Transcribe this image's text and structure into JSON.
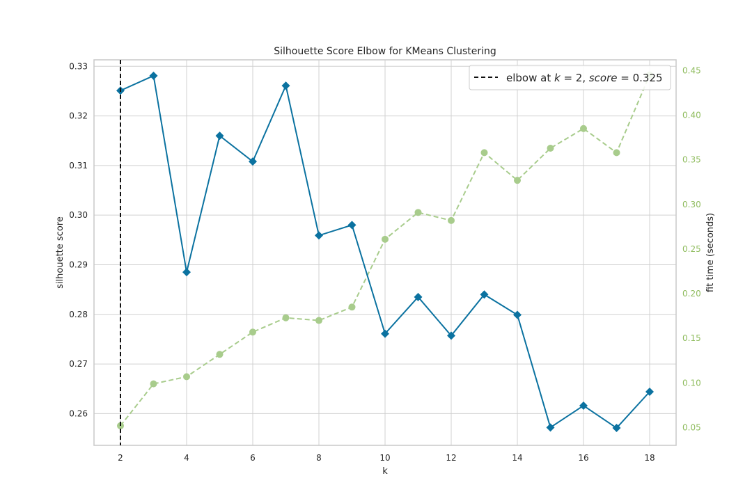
{
  "colors": {
    "score": "#0b72a0",
    "fit_time": "#a8cc8c",
    "fit_time_text": "#8fbc5e",
    "elbow": "#111111",
    "grid": "#d0d0d0",
    "spine": "#c8c8c8"
  },
  "chart_data": {
    "type": "line",
    "title": "Silhouette Score Elbow for KMeans Clustering",
    "xlabel": "k",
    "ylabel": "silhouette score",
    "y2label": "fit time (seconds)",
    "xlim": [
      1.2,
      18.8
    ],
    "ylim": [
      0.2536,
      0.3313
    ],
    "y2lim": [
      0.0301,
      0.462
    ],
    "x_ticks": [
      2,
      4,
      6,
      8,
      10,
      12,
      14,
      16,
      18
    ],
    "y_ticks": [
      0.26,
      0.27,
      0.28,
      0.29,
      0.3,
      0.31,
      0.32,
      0.33
    ],
    "y2_ticks": [
      0.05,
      0.1,
      0.15,
      0.2,
      0.25,
      0.3,
      0.35,
      0.4,
      0.45
    ],
    "grid": true,
    "x": [
      2,
      3,
      4,
      5,
      6,
      7,
      8,
      9,
      10,
      11,
      12,
      13,
      14,
      15,
      16,
      17,
      18
    ],
    "series": [
      {
        "name": "silhouette score",
        "axis": "left",
        "marker": "diamond",
        "values": [
          0.3251,
          0.3281,
          0.2885,
          0.316,
          0.3108,
          0.3261,
          0.2959,
          0.298,
          0.2761,
          0.2835,
          0.2757,
          0.284,
          0.2799,
          0.2572,
          0.2616,
          0.2571,
          0.2644
        ]
      },
      {
        "name": "fit time (seconds)",
        "axis": "right",
        "marker": "circle",
        "dashed": true,
        "values": [
          0.052,
          0.099,
          0.107,
          0.132,
          0.157,
          0.173,
          0.17,
          0.185,
          0.261,
          0.291,
          0.282,
          0.358,
          0.327,
          0.363,
          0.385,
          0.358,
          0.445
        ]
      }
    ],
    "elbow": {
      "k": 2
    },
    "legend": {
      "position": "top-right",
      "label_prefix": "elbow at ",
      "k_symbol": "k",
      "k_eq": " = 2, ",
      "score_symbol": "score",
      "score_eq": " = 0.325"
    }
  }
}
